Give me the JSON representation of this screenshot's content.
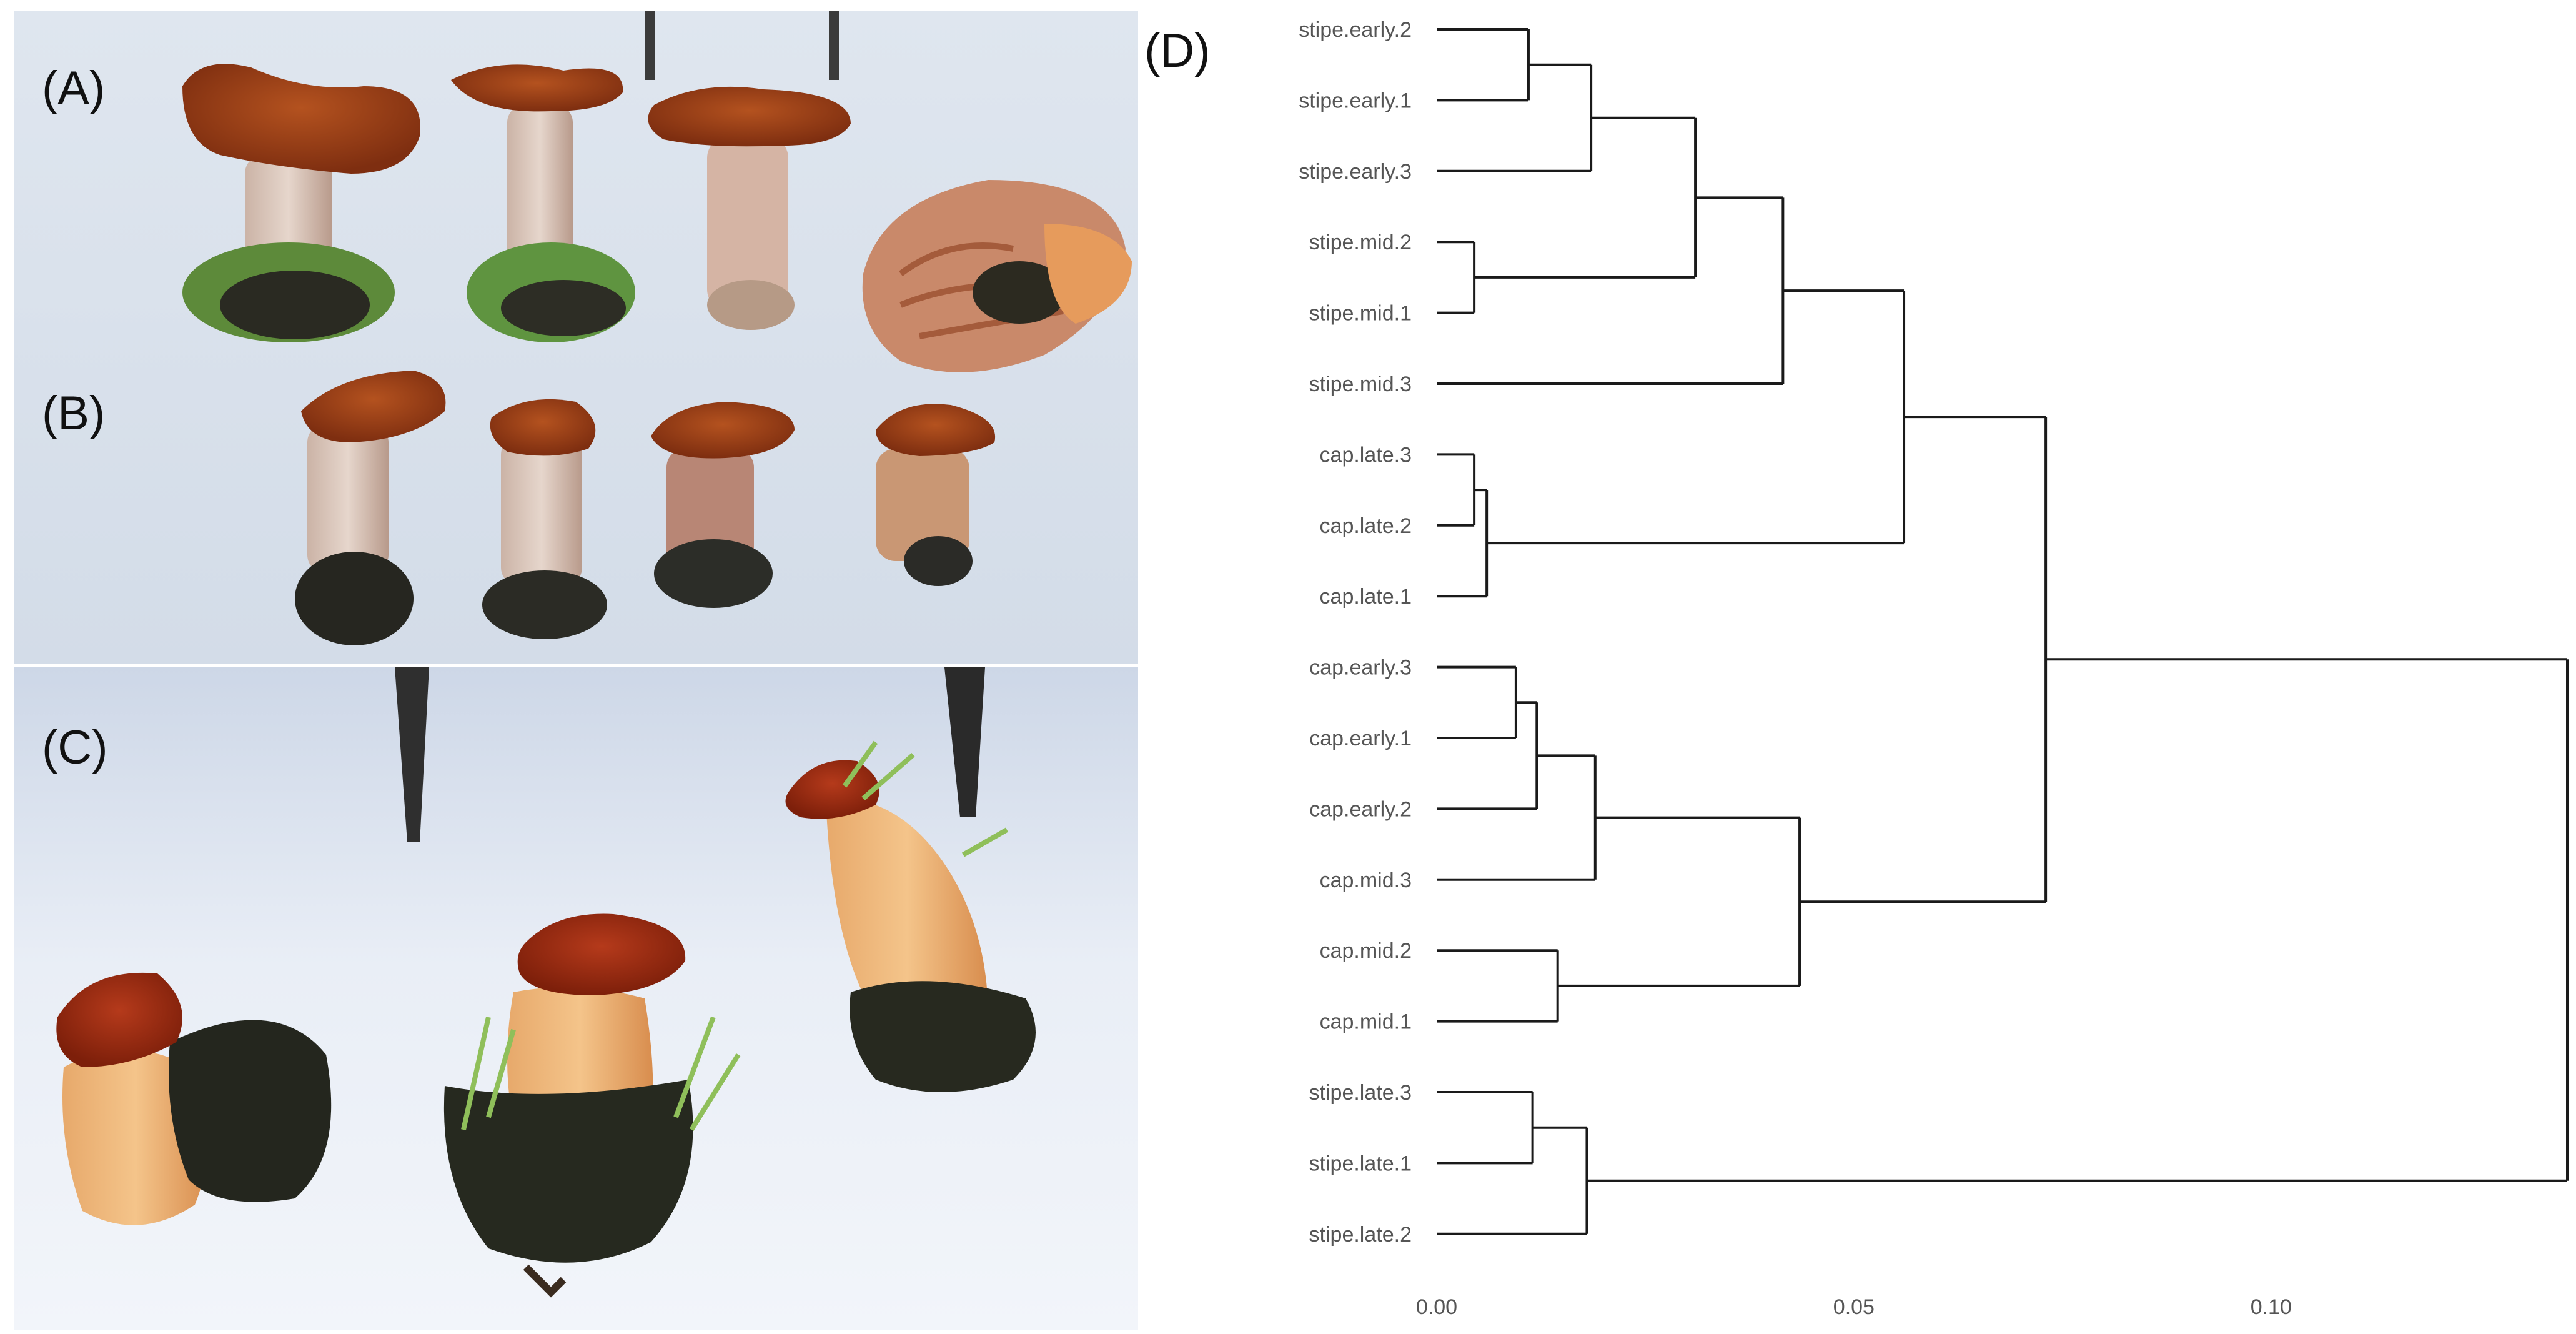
{
  "panels": {
    "a": "(A)",
    "b": "(B)",
    "c": "(C)",
    "d": "(D)"
  },
  "chart_data": {
    "type": "dendrogram",
    "orientation": "horizontal",
    "leaves": [
      "stipe.early.2",
      "stipe.early.1",
      "stipe.early.3",
      "stipe.mid.2",
      "stipe.mid.1",
      "stipe.mid.3",
      "cap.late.3",
      "cap.late.2",
      "cap.late.1",
      "cap.early.3",
      "cap.early.1",
      "cap.early.2",
      "cap.mid.3",
      "cap.mid.2",
      "cap.mid.1",
      "stipe.late.3",
      "stipe.late.1",
      "stipe.late.2"
    ],
    "merges": [
      {
        "a": "L0",
        "b": "L1",
        "h": 0.011
      },
      {
        "a": "M0",
        "b": "L2",
        "h": 0.0185
      },
      {
        "a": "L3",
        "b": "L4",
        "h": 0.0045
      },
      {
        "a": "M1",
        "b": "M2",
        "h": 0.031
      },
      {
        "a": "M3",
        "b": "L5",
        "h": 0.0415
      },
      {
        "a": "L6",
        "b": "L7",
        "h": 0.0045
      },
      {
        "a": "M5",
        "b": "L8",
        "h": 0.006
      },
      {
        "a": "M4",
        "b": "M6",
        "h": 0.056
      },
      {
        "a": "L9",
        "b": "L10",
        "h": 0.0095
      },
      {
        "a": "M8",
        "b": "L11",
        "h": 0.012
      },
      {
        "a": "M9",
        "b": "L12",
        "h": 0.019
      },
      {
        "a": "L13",
        "b": "L14",
        "h": 0.0145
      },
      {
        "a": "M10",
        "b": "M11",
        "h": 0.0435
      },
      {
        "a": "M7",
        "b": "M12",
        "h": 0.073
      },
      {
        "a": "L15",
        "b": "L16",
        "h": 0.0115
      },
      {
        "a": "M14",
        "b": "L17",
        "h": 0.018
      },
      {
        "a": "M13",
        "b": "M15",
        "h": 0.1355
      }
    ],
    "xaxis": {
      "range": [
        0,
        0.1355
      ],
      "ticks": [
        0,
        0.05,
        0.1
      ],
      "tick_labels": [
        "0.00",
        "0.05",
        "0.10"
      ]
    }
  }
}
